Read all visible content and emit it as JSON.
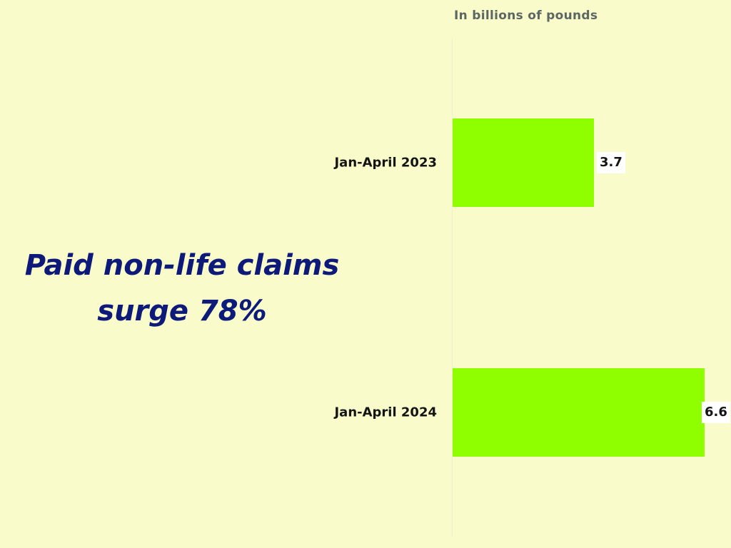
{
  "chart_data": {
    "type": "bar",
    "orientation": "horizontal",
    "title": "Paid non-life claims surge 78%",
    "unit_label": "In billions of pounds",
    "categories": [
      "Jan-April 2023",
      "Jan-April 2024"
    ],
    "values": [
      3.7,
      6.6
    ],
    "value_labels": [
      "3.7",
      "6.6"
    ],
    "xlabel": "",
    "ylabel": "",
    "xlim": [
      0,
      6.6
    ],
    "grid": false,
    "legend": null,
    "colors": {
      "bar": "#8fff00",
      "background": "#f9fbca",
      "title": "#0d1a7a",
      "unit_label": "#5c6763",
      "text": "#141414"
    }
  },
  "headline": {
    "line1": "Paid non-life claims",
    "line2": "surge 78%"
  },
  "unit_label": "In billions of pounds",
  "bars": [
    {
      "label": "Jan-April 2023",
      "value": "3.7"
    },
    {
      "label": "Jan-April 2024",
      "value": "6.6"
    }
  ]
}
